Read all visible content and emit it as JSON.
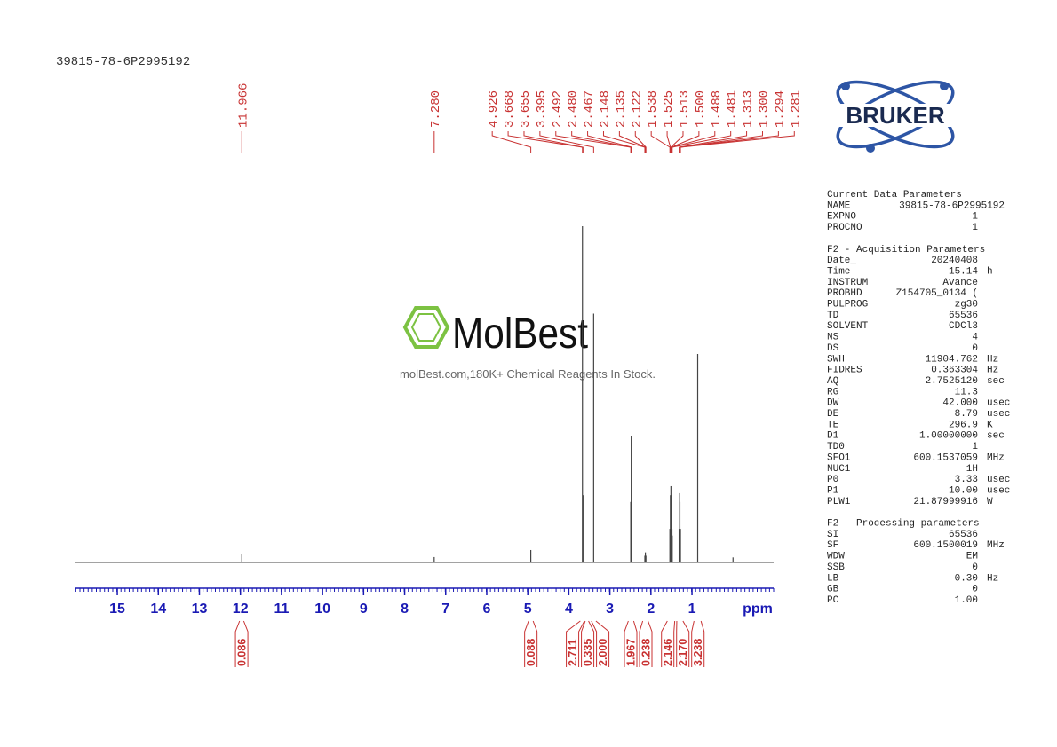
{
  "chart_data": {
    "type": "nmr",
    "title": "39815-78-6P2995192",
    "x_label": "ppm",
    "xlim": [
      16.04,
      -0.99
    ],
    "xticks": [
      15,
      14,
      13,
      12,
      11,
      10,
      9,
      8,
      7,
      6,
      5,
      4,
      3,
      2,
      1
    ],
    "minor_tick_step": 0.1,
    "ylim": [
      0,
      100
    ],
    "color": "#444444",
    "label_color": "#c83232",
    "tick_color": "#1a1ab4",
    "spectrum": {
      "x": [
        11.966,
        7.28,
        4.926,
        3.668,
        3.655,
        3.395,
        2.492,
        2.48,
        2.467,
        2.148,
        2.135,
        2.122,
        1.538,
        1.525,
        1.513,
        1.5,
        1.488,
        1.481,
        1.313,
        1.3,
        1.294,
        1.281,
        0.86,
        0.0
      ],
      "y": [
        2.6,
        1.6,
        3.7,
        100,
        20,
        74,
        18,
        37.5,
        18,
        2,
        3,
        2,
        10,
        20,
        22.7,
        20,
        10,
        8,
        10,
        20.6,
        18,
        10,
        62,
        1.5
      ]
    },
    "peak_labels": {
      "values": [
        11.966,
        7.28,
        4.926,
        3.668,
        3.655,
        3.395,
        2.492,
        2.48,
        2.467,
        2.148,
        2.135,
        2.122,
        1.538,
        1.525,
        1.513,
        1.5,
        1.488,
        1.481,
        1.313,
        1.3,
        1.294,
        1.281
      ],
      "value_labels": [
        "11.966",
        "7.280",
        "4.926",
        "3.668",
        "3.655",
        "3.395",
        "2.492",
        "2.480",
        "2.467",
        "2.148",
        "2.135",
        "2.122",
        "1.538",
        "1.525",
        "1.513",
        "1.500",
        "1.488",
        "1.481",
        "1.313",
        "1.300",
        "1.294",
        "1.281"
      ]
    },
    "integrals": {
      "ranges": [
        [
          12.02,
          11.92
        ],
        [
          4.98,
          4.87
        ],
        [
          3.72,
          3.62
        ],
        [
          3.6,
          3.52
        ],
        [
          3.45,
          3.34
        ],
        [
          2.55,
          2.42
        ],
        [
          2.2,
          2.07
        ],
        [
          1.6,
          1.42
        ],
        [
          1.37,
          1.22
        ],
        [
          0.95,
          0.78
        ]
      ],
      "values": [
        0.086,
        0.088,
        2.711,
        0.335,
        2.0,
        1.967,
        0.238,
        2.146,
        2.17,
        3.238
      ],
      "value_labels": [
        "0.086",
        "0.088",
        "2.711",
        "0.335",
        "2.000",
        "1.967",
        "0.238",
        "2.146",
        "2.170",
        "3.238"
      ]
    }
  },
  "params": {
    "sections": [
      {
        "heading": "Current Data Parameters",
        "rows": [
          [
            "NAME",
            "39815-78-6P2995192"
          ],
          [
            "EXPNO",
            "1"
          ],
          [
            "PROCNO",
            "1"
          ]
        ]
      },
      {
        "heading": "F2 - Acquisition Parameters",
        "rows": [
          [
            "Date_",
            "20240408"
          ],
          [
            "Time",
            "15.14",
            "h"
          ],
          [
            "INSTRUM",
            "Avance"
          ],
          [
            "PROBHD",
            "Z154705_0134 ("
          ],
          [
            "PULPROG",
            "zg30"
          ],
          [
            "TD",
            "65536"
          ],
          [
            "SOLVENT",
            "CDCl3"
          ],
          [
            "NS",
            "4"
          ],
          [
            "DS",
            "0"
          ],
          [
            "SWH",
            "11904.762",
            "Hz"
          ],
          [
            "FIDRES",
            "0.363304",
            "Hz"
          ],
          [
            "AQ",
            "2.7525120",
            "sec"
          ],
          [
            "RG",
            "11.3"
          ],
          [
            "DW",
            "42.000",
            "usec"
          ],
          [
            "DE",
            "8.79",
            "usec"
          ],
          [
            "TE",
            "296.9",
            "K"
          ],
          [
            "D1",
            "1.00000000",
            "sec"
          ],
          [
            "TD0",
            "1"
          ],
          [
            "SFO1",
            "600.1537059",
            "MHz"
          ],
          [
            "NUC1",
            "1H"
          ],
          [
            "P0",
            "3.33",
            "usec"
          ],
          [
            "P1",
            "10.00",
            "usec"
          ],
          [
            "PLW1",
            "21.87999916",
            "W"
          ]
        ]
      },
      {
        "heading": "F2 - Processing parameters",
        "rows": [
          [
            "SI",
            "65536"
          ],
          [
            "SF",
            "600.1500019",
            "MHz"
          ],
          [
            "WDW",
            "EM"
          ],
          [
            "SSB",
            "0"
          ],
          [
            "LB",
            "0.30",
            "Hz"
          ],
          [
            "GB",
            "0"
          ],
          [
            "PC",
            "1.00"
          ]
        ]
      }
    ]
  },
  "logo": {
    "text": "BRUKER"
  },
  "watermark": {
    "brand": "MolBest",
    "tagline": "molBest.com,180K+ Chemical Reagents In Stock."
  }
}
